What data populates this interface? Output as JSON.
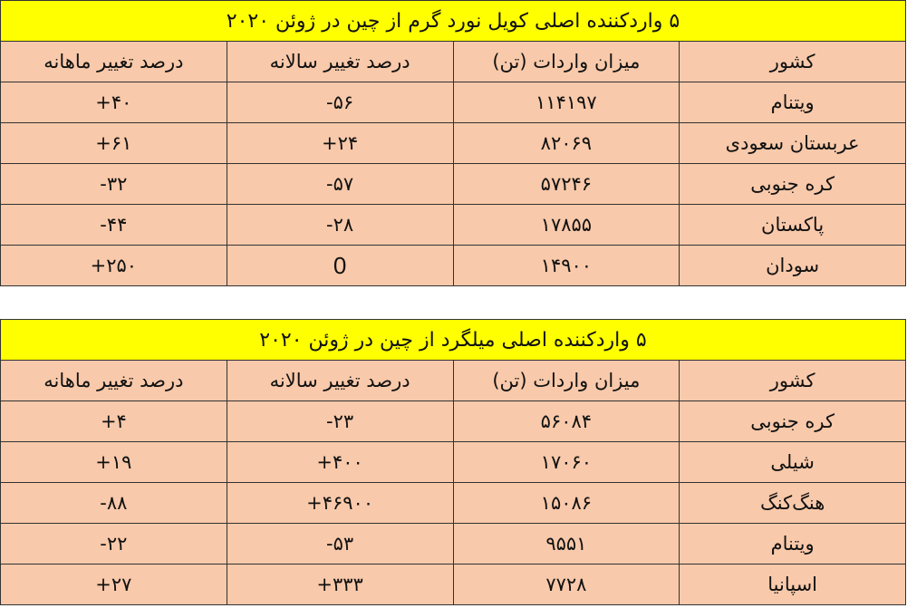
{
  "tables": [
    {
      "title": "۵ واردکننده اصلی کویل نورد گرم از چین در ژوئن ۲۰۲۰",
      "headers": [
        "کشور",
        "میزان واردات (تن)",
        "درصد تغییر سالانه",
        "درصد تغییر ماهانه"
      ],
      "rows": [
        [
          "ویتنام",
          "۱۱۴۱۹۷",
          "-۵۶",
          "+۴۰"
        ],
        [
          "عربستان سعودی",
          "۸۲۰۶۹",
          "+۲۴",
          "+۶۱"
        ],
        [
          "کره جنوبی",
          "۵۷۲۴۶",
          "-۵۷",
          "-۳۲"
        ],
        [
          "پاکستان",
          "۱۷۸۵۵",
          "-۲۸",
          "-۴۴"
        ],
        [
          "سودان",
          "۱۴۹۰۰",
          "0",
          "+۲۵۰"
        ]
      ]
    },
    {
      "title": "۵ واردکننده اصلی میلگرد از چین در ژوئن ۲۰۲۰",
      "headers": [
        "کشور",
        "میزان واردات (تن)",
        "درصد تغییر سالانه",
        "درصد تغییر ماهانه"
      ],
      "rows": [
        [
          "کره جنوبی",
          "۵۶۰۸۴",
          "-۲۳",
          "+۴"
        ],
        [
          "شیلی",
          "۱۷۰۶۰",
          "+۴۰۰",
          "+۱۹"
        ],
        [
          "هنگ‌کنگ",
          "۱۵۰۸۶",
          "+۴۶۹۰۰",
          "-۸۸"
        ],
        [
          "ویتنام",
          "۹۵۵۱",
          "-۵۳",
          "-۲۲"
        ],
        [
          "اسپانیا",
          "۷۷۲۸",
          "+۳۳۳",
          "+۲۷"
        ]
      ]
    }
  ],
  "colors": {
    "title_bg": "#ffff00",
    "cell_bg": "#f8c9aa",
    "border": "#333333"
  }
}
